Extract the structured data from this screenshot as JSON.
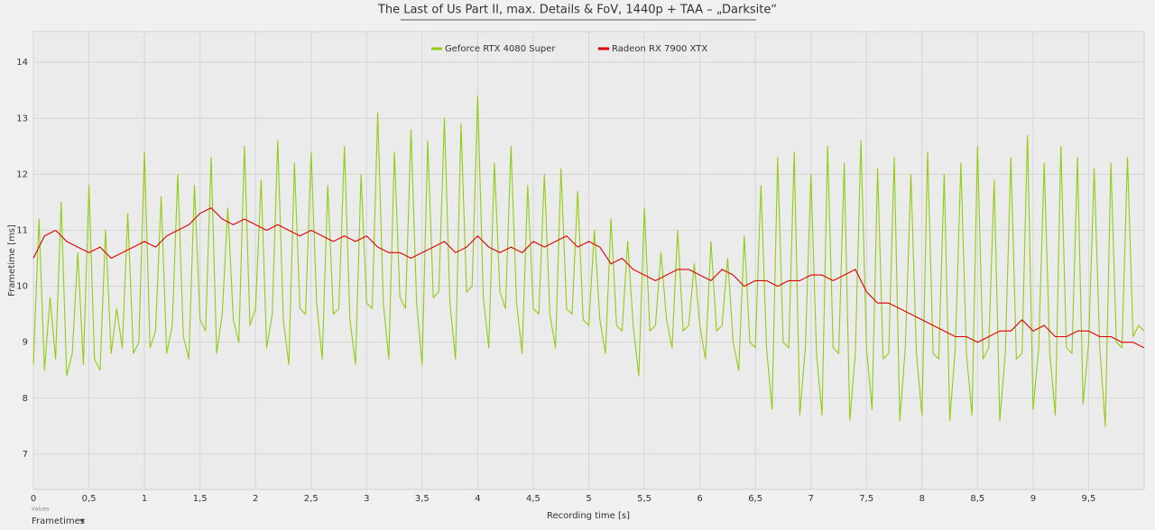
{
  "chart_data": {
    "type": "line",
    "title": "The Last of Us Part II, max. Details & FoV, 1440p + TAA – „Darksite“",
    "xlabel": "Recording time [s]",
    "ylabel": "Frametime [ms]",
    "footer_small": "Values",
    "footer_select": "Frametimes",
    "legend": "top",
    "grid": true,
    "xlim": [
      0,
      10
    ],
    "ylim": [
      6.37,
      14.55
    ],
    "xticks": [
      0,
      {
        "value": 0.5,
        "label": "0,5"
      },
      1,
      {
        "value": 1.5,
        "label": "1,5"
      },
      2,
      {
        "value": 2.5,
        "label": "2,5"
      },
      3,
      {
        "value": 3.5,
        "label": "3,5"
      },
      4,
      {
        "value": 4.5,
        "label": "4,5"
      },
      5,
      {
        "value": 5.5,
        "label": "5,5"
      },
      6,
      {
        "value": 6.5,
        "label": "6,5"
      },
      7,
      {
        "value": 7.5,
        "label": "7,5"
      },
      8,
      {
        "value": 8.5,
        "label": "8,5"
      },
      9,
      {
        "value": 9.5,
        "label": "9,5"
      }
    ],
    "yticks": [
      7,
      8,
      9,
      10,
      11,
      12,
      13,
      14
    ],
    "series": [
      {
        "name": "Geforce RTX 4080 Super",
        "color": "#92cc12",
        "x": [
          0,
          0.05,
          0.1,
          0.15,
          0.2,
          0.25,
          0.3,
          0.35,
          0.4,
          0.45,
          0.5,
          0.55,
          0.6,
          0.65,
          0.7,
          0.75,
          0.8,
          0.85,
          0.9,
          0.95,
          1,
          1.05,
          1.1,
          1.15,
          1.2,
          1.25,
          1.3,
          1.35,
          1.4,
          1.45,
          1.5,
          1.55,
          1.6,
          1.65,
          1.7,
          1.75,
          1.8,
          1.85,
          1.9,
          1.95,
          2,
          2.05,
          2.1,
          2.15,
          2.2,
          2.25,
          2.3,
          2.35,
          2.4,
          2.45,
          2.5,
          2.55,
          2.6,
          2.65,
          2.7,
          2.75,
          2.8,
          2.85,
          2.9,
          2.95,
          3,
          3.05,
          3.1,
          3.15,
          3.2,
          3.25,
          3.3,
          3.35,
          3.4,
          3.45,
          3.5,
          3.55,
          3.6,
          3.65,
          3.7,
          3.75,
          3.8,
          3.85,
          3.9,
          3.95,
          4,
          4.05,
          4.1,
          4.15,
          4.2,
          4.25,
          4.3,
          4.35,
          4.4,
          4.45,
          4.5,
          4.55,
          4.6,
          4.65,
          4.7,
          4.75,
          4.8,
          4.85,
          4.9,
          4.95,
          5,
          5.05,
          5.1,
          5.15,
          5.2,
          5.25,
          5.3,
          5.35,
          5.4,
          5.45,
          5.5,
          5.55,
          5.6,
          5.65,
          5.7,
          5.75,
          5.8,
          5.85,
          5.9,
          5.95,
          6,
          6.05,
          6.1,
          6.15,
          6.2,
          6.25,
          6.3,
          6.35,
          6.4,
          6.45,
          6.5,
          6.55,
          6.6,
          6.65,
          6.7,
          6.75,
          6.8,
          6.85,
          6.9,
          6.95,
          7,
          7.05,
          7.1,
          7.15,
          7.2,
          7.25,
          7.3,
          7.35,
          7.4,
          7.45,
          7.5,
          7.55,
          7.6,
          7.65,
          7.7,
          7.75,
          7.8,
          7.85,
          7.9,
          7.95,
          8,
          8.05,
          8.1,
          8.15,
          8.2,
          8.25,
          8.3,
          8.35,
          8.4,
          8.45,
          8.5,
          8.55,
          8.6,
          8.65,
          8.7,
          8.75,
          8.8,
          8.85,
          8.9,
          8.95,
          9,
          9.05,
          9.1,
          9.15,
          9.2,
          9.25,
          9.3,
          9.35,
          9.4,
          9.45,
          9.5,
          9.55,
          9.6,
          9.65,
          9.7,
          9.75,
          9.8,
          9.85,
          9.9,
          9.95,
          10
        ],
        "values": [
          8.6,
          11.2,
          8.5,
          9.8,
          8.7,
          11.5,
          8.4,
          8.8,
          10.6,
          8.6,
          11.8,
          8.7,
          8.5,
          11.0,
          8.8,
          9.6,
          8.9,
          11.3,
          8.8,
          9.0,
          12.4,
          8.9,
          9.2,
          11.6,
          8.8,
          9.3,
          12.0,
          9.1,
          8.7,
          11.8,
          9.4,
          9.2,
          12.3,
          8.8,
          9.5,
          11.4,
          9.4,
          9.0,
          12.5,
          9.3,
          9.6,
          11.9,
          8.9,
          9.5,
          12.6,
          9.4,
          8.6,
          12.2,
          9.6,
          9.5,
          12.4,
          9.7,
          8.7,
          11.8,
          9.5,
          9.6,
          12.5,
          9.4,
          8.6,
          12.0,
          9.7,
          9.6,
          13.1,
          9.7,
          8.7,
          12.4,
          9.8,
          9.6,
          12.8,
          9.7,
          8.6,
          12.6,
          9.8,
          9.9,
          13.0,
          9.7,
          8.7,
          12.9,
          9.9,
          10.0,
          13.4,
          9.8,
          8.9,
          12.2,
          9.9,
          9.6,
          12.5,
          9.7,
          8.8,
          11.8,
          9.6,
          9.5,
          12.0,
          9.5,
          8.9,
          12.1,
          9.6,
          9.5,
          11.7,
          9.4,
          9.3,
          11.0,
          9.4,
          8.8,
          11.2,
          9.3,
          9.2,
          10.8,
          9.3,
          8.4,
          11.4,
          9.2,
          9.3,
          10.6,
          9.4,
          8.9,
          11.0,
          9.2,
          9.3,
          10.4,
          9.3,
          8.7,
          10.8,
          9.2,
          9.3,
          10.5,
          9.0,
          8.5,
          10.9,
          9.0,
          8.9,
          11.8,
          8.9,
          7.8,
          12.3,
          9.0,
          8.9,
          12.4,
          7.7,
          8.9,
          12.0,
          8.8,
          7.7,
          12.5,
          8.9,
          8.8,
          12.2,
          7.6,
          8.8,
          12.6,
          8.9,
          7.8,
          12.1,
          8.7,
          8.8,
          12.3,
          7.6,
          8.9,
          12.0,
          8.8,
          7.7,
          12.4,
          8.8,
          8.7,
          12.0,
          7.6,
          8.9,
          12.2,
          8.8,
          7.7,
          12.5,
          8.7,
          8.9,
          11.9,
          7.6,
          8.8,
          12.3,
          8.7,
          8.8,
          12.7,
          7.8,
          8.9,
          12.2,
          8.8,
          7.7,
          12.5,
          8.9,
          8.8,
          12.3,
          7.9,
          9.0,
          12.1,
          8.9,
          7.5,
          12.2,
          9.0,
          8.9,
          12.3,
          9.1,
          9.3,
          9.2
        ]
      },
      {
        "name": "Radeon RX 7900 XTX",
        "color": "#e00000",
        "x": [
          0,
          0.1,
          0.2,
          0.3,
          0.4,
          0.5,
          0.6,
          0.7,
          0.8,
          0.9,
          1,
          1.1,
          1.2,
          1.3,
          1.4,
          1.5,
          1.6,
          1.7,
          1.8,
          1.9,
          2,
          2.1,
          2.2,
          2.3,
          2.4,
          2.5,
          2.6,
          2.7,
          2.8,
          2.9,
          3,
          3.1,
          3.2,
          3.3,
          3.4,
          3.5,
          3.6,
          3.7,
          3.8,
          3.9,
          4,
          4.1,
          4.2,
          4.3,
          4.4,
          4.5,
          4.6,
          4.7,
          4.8,
          4.9,
          5,
          5.1,
          5.2,
          5.3,
          5.4,
          5.5,
          5.6,
          5.7,
          5.8,
          5.9,
          6,
          6.1,
          6.2,
          6.3,
          6.4,
          6.5,
          6.6,
          6.7,
          6.8,
          6.9,
          7,
          7.1,
          7.2,
          7.3,
          7.4,
          7.5,
          7.6,
          7.7,
          7.8,
          7.9,
          8,
          8.1,
          8.2,
          8.3,
          8.4,
          8.5,
          8.6,
          8.7,
          8.8,
          8.9,
          9,
          9.1,
          9.2,
          9.3,
          9.4,
          9.5,
          9.6,
          9.7,
          9.8,
          9.9,
          10
        ],
        "values": [
          10.5,
          10.9,
          11.0,
          10.8,
          10.7,
          10.6,
          10.7,
          10.5,
          10.6,
          10.7,
          10.8,
          10.7,
          10.9,
          11.0,
          11.1,
          11.3,
          11.4,
          11.2,
          11.1,
          11.2,
          11.1,
          11.0,
          11.1,
          11.0,
          10.9,
          11.0,
          10.9,
          10.8,
          10.9,
          10.8,
          10.9,
          10.7,
          10.6,
          10.6,
          10.5,
          10.6,
          10.7,
          10.8,
          10.6,
          10.7,
          10.9,
          10.7,
          10.6,
          10.7,
          10.6,
          10.8,
          10.7,
          10.8,
          10.9,
          10.7,
          10.8,
          10.7,
          10.4,
          10.5,
          10.3,
          10.2,
          10.1,
          10.2,
          10.3,
          10.3,
          10.2,
          10.1,
          10.3,
          10.2,
          10.0,
          10.1,
          10.1,
          10.0,
          10.1,
          10.1,
          10.2,
          10.2,
          10.1,
          10.2,
          10.3,
          9.9,
          9.7,
          9.7,
          9.6,
          9.5,
          9.4,
          9.3,
          9.2,
          9.1,
          9.1,
          9.0,
          9.1,
          9.2,
          9.2,
          9.4,
          9.2,
          9.3,
          9.1,
          9.1,
          9.2,
          9.2,
          9.1,
          9.1,
          9.0,
          9.0,
          8.9
        ]
      }
    ]
  }
}
